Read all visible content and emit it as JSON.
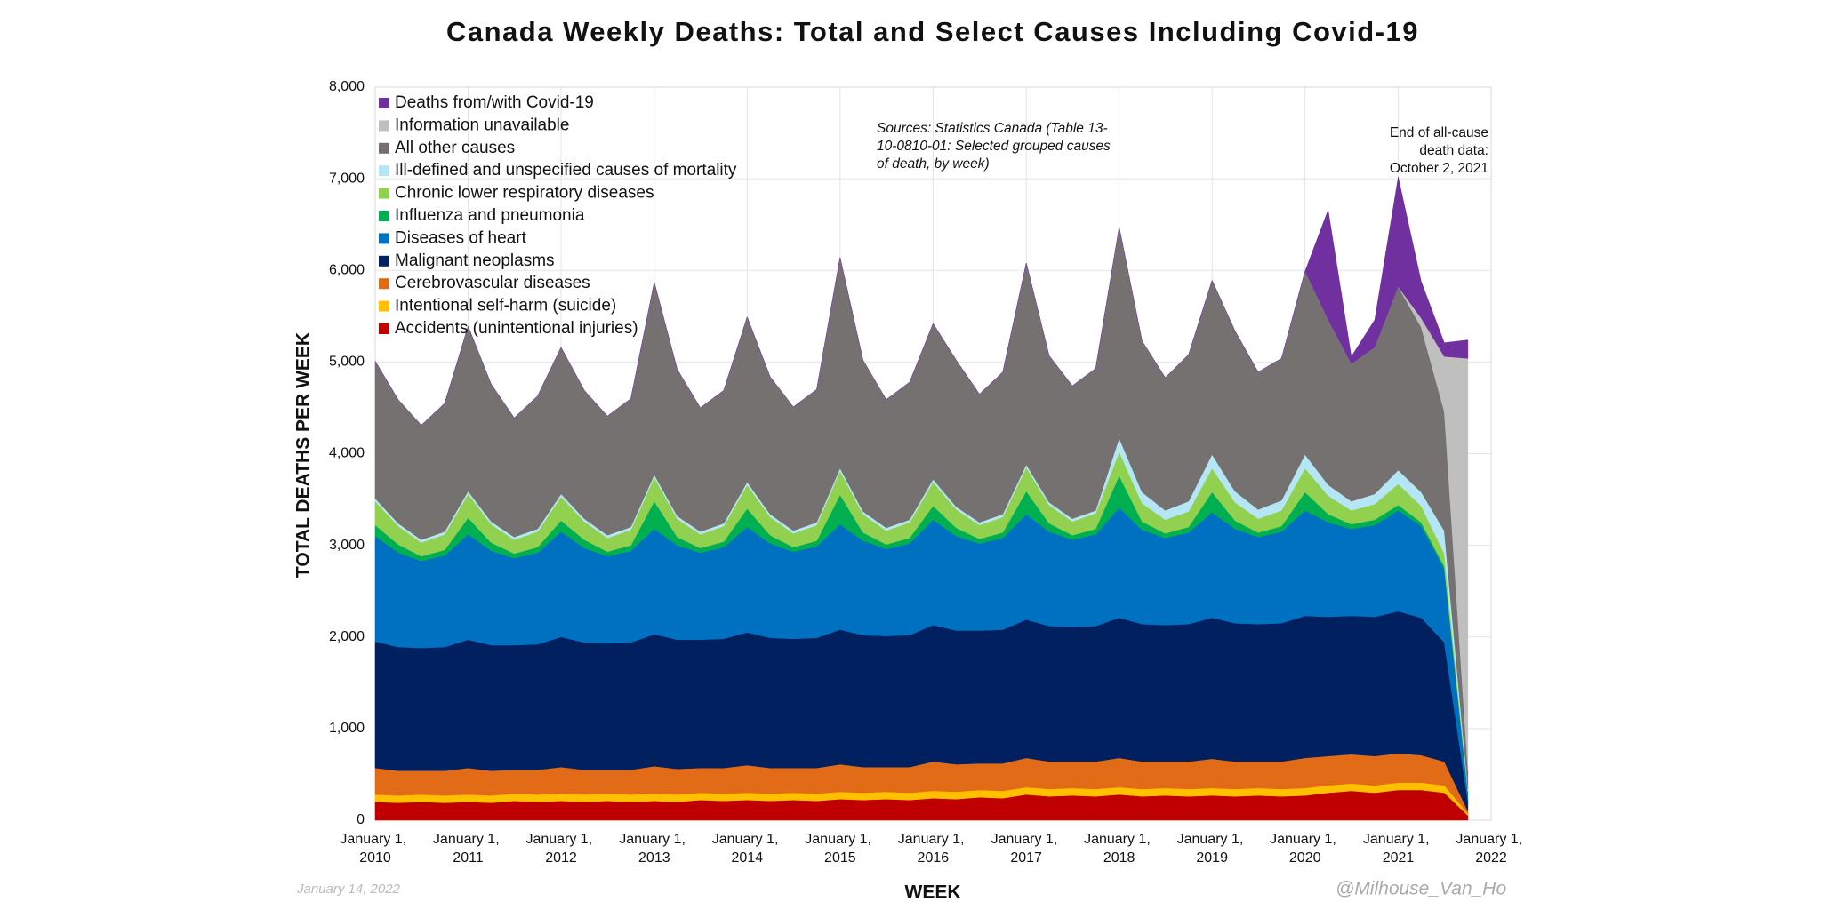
{
  "chart_data": {
    "type": "stacked-area",
    "title": "Canada Weekly Deaths: Total and Select Causes Including Covid-19",
    "y_label": "TOTAL DEATHS PER WEEK",
    "x_label": "WEEK",
    "annotations": [
      "Sources: Statistics Canada (Table 13-10-0810-01: Selected grouped causes of death, by week)",
      "End of all-cause death data: October 2, 2021"
    ],
    "date_note": "January 14, 2022",
    "credit": "@Milhouse_Van_Ho",
    "grid": true,
    "legend": "upper-left",
    "xlim": [
      "2010-01-01",
      "2022-01-01"
    ],
    "xticks": [
      {
        "value": "2010-01-01",
        "label": "January 1, 2010"
      },
      {
        "value": "2011-01-01",
        "label": "January 1, 2011"
      },
      {
        "value": "2012-01-01",
        "label": "January 1, 2012"
      },
      {
        "value": "2013-01-01",
        "label": "January 1, 2013"
      },
      {
        "value": "2014-01-01",
        "label": "January 1, 2014"
      },
      {
        "value": "2015-01-01",
        "label": "January 1, 2015"
      },
      {
        "value": "2016-01-01",
        "label": "January 1, 2016"
      },
      {
        "value": "2017-01-01",
        "label": "January 1, 2017"
      },
      {
        "value": "2018-01-01",
        "label": "January 1, 2018"
      },
      {
        "value": "2019-01-01",
        "label": "January 1, 2019"
      },
      {
        "value": "2020-01-01",
        "label": "January 1, 2020"
      },
      {
        "value": "2021-01-01",
        "label": "January 1, 2021"
      },
      {
        "value": "2022-01-01",
        "label": "January 1, 2022"
      }
    ],
    "ylim": [
      0,
      8000
    ],
    "yticks": [
      0,
      {
        "value": 1000,
        "label": "1,000"
      },
      {
        "value": 2000,
        "label": "2,000"
      },
      {
        "value": 3000,
        "label": "3,000"
      },
      {
        "value": 4000,
        "label": "4,000"
      },
      {
        "value": 5000,
        "label": "5,000"
      },
      {
        "value": 6000,
        "label": "6,000"
      },
      {
        "value": 7000,
        "label": "7,000"
      },
      {
        "value": 8000,
        "label": "8,000"
      }
    ],
    "x": [
      "2010-01-01",
      "2010-04-01",
      "2010-07-01",
      "2010-10-01",
      "2011-01-01",
      "2011-04-01",
      "2011-07-01",
      "2011-10-01",
      "2012-01-01",
      "2012-04-01",
      "2012-07-01",
      "2012-10-01",
      "2013-01-01",
      "2013-04-01",
      "2013-07-01",
      "2013-10-01",
      "2014-01-01",
      "2014-04-01",
      "2014-07-01",
      "2014-10-01",
      "2015-01-01",
      "2015-04-01",
      "2015-07-01",
      "2015-10-01",
      "2016-01-01",
      "2016-04-01",
      "2016-07-01",
      "2016-10-01",
      "2017-01-01",
      "2017-04-01",
      "2017-07-01",
      "2017-10-01",
      "2018-01-01",
      "2018-04-01",
      "2018-07-01",
      "2018-10-01",
      "2019-01-01",
      "2019-04-01",
      "2019-07-01",
      "2019-10-01",
      "2020-01-01",
      "2020-04-01",
      "2020-07-01",
      "2020-10-01",
      "2021-01-01",
      "2021-04-01",
      "2021-07-01",
      "2021-10-02"
    ],
    "series": [
      {
        "name": "Accidents (unintentional injuries)",
        "color": "#c00000",
        "values": [
          200,
          190,
          200,
          190,
          200,
          190,
          210,
          200,
          210,
          200,
          210,
          200,
          210,
          200,
          220,
          210,
          220,
          210,
          220,
          210,
          230,
          220,
          230,
          220,
          240,
          230,
          250,
          240,
          280,
          260,
          270,
          260,
          280,
          260,
          270,
          260,
          270,
          260,
          270,
          260,
          270,
          300,
          320,
          300,
          330,
          330,
          300,
          50
        ]
      },
      {
        "name": "Intentional self-harm (suicide)",
        "color": "#ffc000",
        "values": [
          80,
          80,
          80,
          80,
          80,
          80,
          80,
          80,
          80,
          80,
          80,
          80,
          80,
          80,
          80,
          80,
          80,
          80,
          80,
          80,
          80,
          80,
          80,
          80,
          80,
          80,
          80,
          80,
          80,
          80,
          80,
          80,
          80,
          80,
          80,
          80,
          80,
          80,
          80,
          80,
          80,
          80,
          80,
          80,
          80,
          80,
          80,
          20
        ]
      },
      {
        "name": "Cerebrovascular diseases",
        "color": "#e26b17",
        "values": [
          290,
          270,
          260,
          270,
          290,
          270,
          260,
          270,
          290,
          270,
          260,
          270,
          300,
          280,
          270,
          280,
          300,
          280,
          270,
          280,
          300,
          280,
          270,
          280,
          320,
          300,
          290,
          300,
          320,
          300,
          290,
          300,
          320,
          300,
          290,
          300,
          320,
          300,
          290,
          300,
          330,
          320,
          320,
          320,
          320,
          300,
          260,
          30
        ]
      },
      {
        "name": "Malignant neoplasms",
        "color": "#002060",
        "values": [
          1380,
          1350,
          1340,
          1350,
          1400,
          1370,
          1360,
          1370,
          1420,
          1390,
          1380,
          1390,
          1440,
          1410,
          1400,
          1410,
          1450,
          1420,
          1410,
          1420,
          1470,
          1440,
          1430,
          1440,
          1490,
          1460,
          1450,
          1460,
          1510,
          1480,
          1470,
          1480,
          1530,
          1500,
          1490,
          1500,
          1540,
          1510,
          1500,
          1510,
          1550,
          1520,
          1510,
          1520,
          1550,
          1500,
          1300,
          100
        ]
      },
      {
        "name": "Diseases of heart",
        "color": "#0070c0",
        "values": [
          1150,
          1030,
          950,
          1000,
          1150,
          1030,
          950,
          1000,
          1150,
          1030,
          950,
          1000,
          1150,
          1030,
          950,
          1000,
          1150,
          1030,
          950,
          1000,
          1150,
          1030,
          950,
          1000,
          1150,
          1030,
          950,
          1000,
          1150,
          1030,
          950,
          1000,
          1200,
          1030,
          950,
          1000,
          1150,
          1030,
          950,
          1000,
          1150,
          1030,
          950,
          1000,
          1100,
          1000,
          800,
          100
        ]
      },
      {
        "name": "Influenza and pneumonia",
        "color": "#00b050",
        "values": [
          120,
          90,
          50,
          60,
          180,
          90,
          50,
          60,
          120,
          90,
          50,
          60,
          300,
          90,
          50,
          60,
          200,
          90,
          50,
          60,
          320,
          90,
          50,
          60,
          150,
          90,
          50,
          60,
          250,
          90,
          50,
          60,
          350,
          90,
          50,
          60,
          220,
          90,
          50,
          60,
          200,
          90,
          50,
          60,
          60,
          40,
          30,
          10
        ]
      },
      {
        "name": "Chronic lower respiratory diseases",
        "color": "#92d050",
        "values": [
          260,
          200,
          150,
          170,
          260,
          200,
          150,
          170,
          260,
          200,
          150,
          170,
          260,
          200,
          150,
          170,
          260,
          200,
          150,
          170,
          260,
          200,
          150,
          170,
          260,
          200,
          150,
          170,
          260,
          200,
          150,
          170,
          260,
          200,
          150,
          170,
          260,
          200,
          150,
          170,
          260,
          200,
          150,
          170,
          230,
          180,
          140,
          10
        ]
      },
      {
        "name": "Ill-defined and unspecified causes of mortality",
        "color": "#b4e6f5",
        "values": [
          30,
          30,
          30,
          30,
          30,
          30,
          30,
          30,
          30,
          30,
          30,
          30,
          30,
          30,
          30,
          30,
          30,
          30,
          30,
          30,
          30,
          30,
          30,
          30,
          30,
          30,
          30,
          30,
          30,
          30,
          30,
          30,
          150,
          120,
          100,
          110,
          150,
          120,
          100,
          110,
          150,
          120,
          100,
          110,
          150,
          150,
          250,
          20
        ]
      },
      {
        "name": "All other causes",
        "color": "#767171",
        "values": [
          1500,
          1350,
          1250,
          1400,
          1800,
          1500,
          1300,
          1450,
          1600,
          1400,
          1300,
          1400,
          2100,
          1600,
          1350,
          1450,
          1800,
          1500,
          1350,
          1450,
          2300,
          1650,
          1400,
          1500,
          1700,
          1600,
          1400,
          1550,
          2200,
          1600,
          1450,
          1550,
          2300,
          1650,
          1450,
          1600,
          1900,
          1750,
          1500,
          1550,
          2000,
          1800,
          1500,
          1600,
          2000,
          1800,
          1300,
          200
        ]
      },
      {
        "name": "Information unavailable",
        "color": "#bfbfbf",
        "values": [
          0,
          0,
          0,
          0,
          0,
          0,
          0,
          0,
          0,
          0,
          0,
          0,
          0,
          0,
          0,
          0,
          0,
          0,
          0,
          0,
          0,
          0,
          0,
          0,
          0,
          0,
          0,
          0,
          0,
          0,
          0,
          0,
          0,
          0,
          0,
          0,
          0,
          0,
          0,
          0,
          0,
          0,
          0,
          0,
          0,
          100,
          600,
          4500
        ]
      },
      {
        "name": "Deaths from/with Covid-19",
        "color": "#7030a0",
        "values": [
          0,
          0,
          0,
          0,
          0,
          0,
          0,
          0,
          0,
          0,
          0,
          0,
          0,
          0,
          0,
          0,
          0,
          0,
          0,
          0,
          0,
          0,
          0,
          0,
          0,
          0,
          0,
          0,
          0,
          0,
          0,
          0,
          0,
          0,
          0,
          0,
          0,
          0,
          0,
          0,
          0,
          1200,
          80,
          300,
          1200,
          400,
          150,
          200
        ]
      }
    ]
  }
}
